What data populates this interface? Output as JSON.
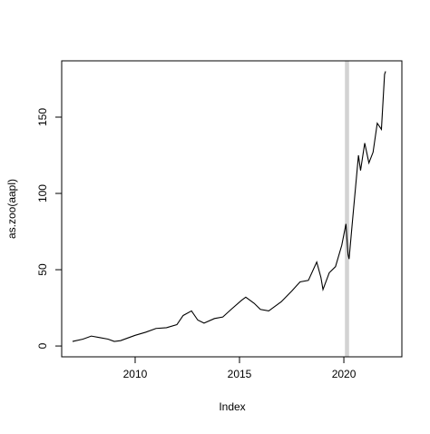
{
  "chart_data": {
    "type": "line",
    "xlabel": "Index",
    "ylabel": "as.zoo(aapl)",
    "x": [
      2007.0,
      2007.5,
      2007.9,
      2008.3,
      2008.7,
      2009.0,
      2009.3,
      2009.7,
      2010.0,
      2010.5,
      2011.0,
      2011.5,
      2012.0,
      2012.3,
      2012.7,
      2013.0,
      2013.3,
      2013.8,
      2014.2,
      2014.6,
      2015.1,
      2015.3,
      2015.7,
      2016.0,
      2016.4,
      2016.8,
      2017.0,
      2017.5,
      2017.9,
      2018.3,
      2018.7,
      2018.9,
      2019.0,
      2019.3,
      2019.6,
      2019.9,
      2020.1,
      2020.2,
      2020.25,
      2020.4,
      2020.6,
      2020.7,
      2020.8,
      2021.0,
      2021.2,
      2021.4,
      2021.6,
      2021.8,
      2021.95,
      2022.0
    ],
    "series": [
      {
        "color": "#000000",
        "values": [
          3,
          4.5,
          6.5,
          5.5,
          4.5,
          3,
          3.5,
          5.5,
          7,
          9,
          11.5,
          12,
          14,
          20,
          23,
          17,
          15,
          18,
          19,
          24,
          30,
          32,
          28,
          24,
          23,
          27,
          29,
          36,
          42,
          43,
          55,
          45,
          37,
          48,
          52,
          66,
          80,
          60,
          57,
          80,
          110,
          125,
          115,
          133,
          120,
          127,
          146,
          142,
          178,
          180
        ]
      }
    ],
    "shade": {
      "xrange": [
        2020.05,
        2020.25
      ],
      "color": "#d3d3d3"
    },
    "xlim": [
      2006.48,
      2022.78
    ],
    "ylim": [
      -7.1,
      186.9
    ],
    "xticks": [
      2010,
      2015,
      2020
    ],
    "yticks": [
      0,
      50,
      100,
      150
    ]
  }
}
